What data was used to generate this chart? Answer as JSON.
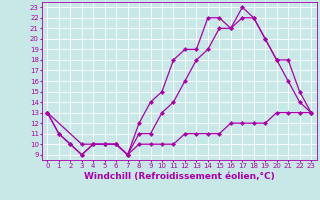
{
  "xlabel": "Windchill (Refroidissement éolien,°C)",
  "xlim": [
    -0.5,
    23.5
  ],
  "ylim": [
    8.5,
    23.5
  ],
  "xticks": [
    0,
    1,
    2,
    3,
    4,
    5,
    6,
    7,
    8,
    9,
    10,
    11,
    12,
    13,
    14,
    15,
    16,
    17,
    18,
    19,
    20,
    21,
    22,
    23
  ],
  "yticks": [
    9,
    10,
    11,
    12,
    13,
    14,
    15,
    16,
    17,
    18,
    19,
    20,
    21,
    22,
    23
  ],
  "bg_color": "#c8e8e8",
  "grid_color": "#b0d0d0",
  "line_color": "#aa00aa",
  "line1_x": [
    0,
    1,
    2,
    3,
    4,
    5,
    6,
    7,
    8,
    9,
    10,
    11,
    12,
    13,
    14,
    15,
    16,
    17,
    18,
    19,
    20,
    21,
    22,
    23
  ],
  "line1_y": [
    13,
    11,
    10,
    9,
    10,
    10,
    10,
    9,
    10,
    10,
    10,
    10,
    11,
    11,
    11,
    11,
    12,
    12,
    12,
    12,
    13,
    13,
    13,
    13
  ],
  "line2_x": [
    0,
    1,
    2,
    3,
    4,
    5,
    6,
    7,
    8,
    9,
    10,
    11,
    12,
    13,
    14,
    15,
    16,
    17,
    18,
    19,
    20,
    21,
    22,
    23
  ],
  "line2_y": [
    13,
    11,
    10,
    9,
    10,
    10,
    10,
    9,
    12,
    14,
    15,
    18,
    19,
    19,
    22,
    22,
    21,
    23,
    22,
    20,
    18,
    16,
    14,
    13
  ],
  "line3_x": [
    0,
    3,
    4,
    5,
    6,
    7,
    8,
    9,
    10,
    11,
    12,
    13,
    14,
    15,
    16,
    17,
    18,
    19,
    20,
    21,
    22,
    23
  ],
  "line3_y": [
    13,
    10,
    10,
    10,
    10,
    9,
    11,
    11,
    13,
    14,
    16,
    18,
    19,
    21,
    21,
    22,
    22,
    20,
    18,
    18,
    15,
    13
  ],
  "marker": "D",
  "markersize": 2.2,
  "linewidth": 0.9,
  "tick_fontsize": 5,
  "xlabel_fontsize": 6.5
}
